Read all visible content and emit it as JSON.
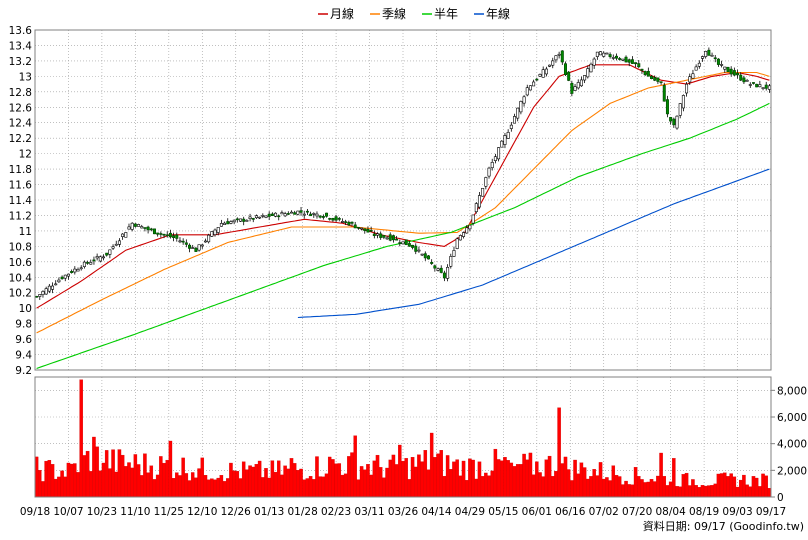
{
  "chart_data": {
    "type": "candlestick",
    "legend": [
      {
        "name": "月線",
        "color": "#cc0000"
      },
      {
        "name": "季線",
        "color": "#ff8000"
      },
      {
        "name": "半年",
        "color": "#00cc00"
      },
      {
        "name": "年線",
        "color": "#0050cc"
      }
    ],
    "price_axis": {
      "ylim": [
        9.2,
        13.6
      ],
      "ticks": [
        "13.6",
        "13.4",
        "13.2",
        "13",
        "12.8",
        "12.6",
        "12.4",
        "12.2",
        "12",
        "11.8",
        "11.6",
        "11.4",
        "11.2",
        "11",
        "10.8",
        "10.6",
        "10.4",
        "10.2",
        "10",
        "9.8",
        "9.6",
        "9.4",
        "9.2"
      ]
    },
    "volume_axis": {
      "ylim": [
        0,
        9000
      ],
      "ticks": [
        "8,000",
        "6,000",
        "4,000",
        "2,000",
        "0"
      ]
    },
    "x_ticks": [
      "09/18",
      "10/07",
      "10/23",
      "11/10",
      "11/25",
      "12/10",
      "12/26",
      "01/13",
      "01/28",
      "02/23",
      "03/11",
      "03/26",
      "04/14",
      "04/29",
      "05/15",
      "06/01",
      "06/16",
      "07/02",
      "07/20",
      "08/04",
      "08/19",
      "09/03",
      "09/17"
    ],
    "source_label": "資料日期: 09/17  (Goodinfo.tw)",
    "anchors": {
      "close": [
        [
          0,
          10.15
        ],
        [
          8,
          10.4
        ],
        [
          14,
          10.55
        ],
        [
          22,
          10.7
        ],
        [
          30,
          11.1
        ],
        [
          36,
          11.0
        ],
        [
          44,
          10.9
        ],
        [
          50,
          10.75
        ],
        [
          58,
          11.1
        ],
        [
          66,
          11.15
        ],
        [
          74,
          11.2
        ],
        [
          82,
          11.25
        ],
        [
          90,
          11.2
        ],
        [
          98,
          11.1
        ],
        [
          106,
          10.95
        ],
        [
          112,
          10.9
        ],
        [
          118,
          10.8
        ],
        [
          122,
          10.65
        ],
        [
          128,
          10.4
        ],
        [
          132,
          10.9
        ],
        [
          136,
          11.1
        ],
        [
          142,
          11.8
        ],
        [
          148,
          12.3
        ],
        [
          154,
          12.85
        ],
        [
          160,
          13.1
        ],
        [
          164,
          13.3
        ],
        [
          168,
          12.8
        ],
        [
          172,
          13.0
        ],
        [
          176,
          13.3
        ],
        [
          182,
          13.25
        ],
        [
          188,
          13.15
        ],
        [
          192,
          13.0
        ],
        [
          196,
          12.9
        ],
        [
          198,
          12.5
        ],
        [
          200,
          12.35
        ],
        [
          204,
          12.9
        ],
        [
          210,
          13.35
        ],
        [
          214,
          13.15
        ],
        [
          218,
          13.05
        ],
        [
          224,
          12.9
        ],
        [
          230,
          12.85
        ]
      ],
      "month": [
        [
          0,
          10.0
        ],
        [
          14,
          10.35
        ],
        [
          28,
          10.75
        ],
        [
          42,
          10.95
        ],
        [
          56,
          10.95
        ],
        [
          70,
          11.05
        ],
        [
          84,
          11.15
        ],
        [
          96,
          11.1
        ],
        [
          108,
          10.95
        ],
        [
          120,
          10.85
        ],
        [
          128,
          10.8
        ],
        [
          134,
          10.95
        ],
        [
          140,
          11.4
        ],
        [
          148,
          12.0
        ],
        [
          156,
          12.6
        ],
        [
          164,
          13.0
        ],
        [
          174,
          13.15
        ],
        [
          186,
          13.15
        ],
        [
          196,
          12.95
        ],
        [
          204,
          12.9
        ],
        [
          212,
          13.0
        ],
        [
          220,
          13.05
        ],
        [
          226,
          13.0
        ],
        [
          230,
          12.95
        ]
      ],
      "season": [
        [
          0,
          9.68
        ],
        [
          20,
          10.1
        ],
        [
          40,
          10.5
        ],
        [
          60,
          10.85
        ],
        [
          80,
          11.05
        ],
        [
          100,
          11.05
        ],
        [
          120,
          10.97
        ],
        [
          132,
          10.98
        ],
        [
          144,
          11.3
        ],
        [
          156,
          11.8
        ],
        [
          168,
          12.3
        ],
        [
          180,
          12.65
        ],
        [
          192,
          12.85
        ],
        [
          204,
          12.95
        ],
        [
          216,
          13.05
        ],
        [
          226,
          13.05
        ],
        [
          230,
          13.0
        ]
      ],
      "half": [
        [
          0,
          9.22
        ],
        [
          30,
          9.65
        ],
        [
          60,
          10.1
        ],
        [
          90,
          10.55
        ],
        [
          110,
          10.8
        ],
        [
          130,
          10.98
        ],
        [
          150,
          11.3
        ],
        [
          170,
          11.7
        ],
        [
          190,
          12.0
        ],
        [
          205,
          12.2
        ],
        [
          220,
          12.45
        ],
        [
          230,
          12.65
        ]
      ],
      "year": [
        [
          82,
          9.88
        ],
        [
          100,
          9.92
        ],
        [
          120,
          10.05
        ],
        [
          140,
          10.3
        ],
        [
          160,
          10.65
        ],
        [
          180,
          11.0
        ],
        [
          200,
          11.35
        ],
        [
          220,
          11.65
        ],
        [
          230,
          11.8
        ]
      ],
      "volume": [
        [
          0,
          2100
        ],
        [
          10,
          1900
        ],
        [
          14,
          2600
        ],
        [
          18,
          3100
        ],
        [
          24,
          2600
        ],
        [
          34,
          2400
        ],
        [
          44,
          2300
        ],
        [
          54,
          2000
        ],
        [
          64,
          1900
        ],
        [
          74,
          1900
        ],
        [
          84,
          2100
        ],
        [
          94,
          2500
        ],
        [
          104,
          2300
        ],
        [
          114,
          2200
        ],
        [
          124,
          2700
        ],
        [
          134,
          2200
        ],
        [
          144,
          2500
        ],
        [
          154,
          2300
        ],
        [
          162,
          2400
        ],
        [
          170,
          2100
        ],
        [
          180,
          1800
        ],
        [
          190,
          1500
        ],
        [
          200,
          1300
        ],
        [
          210,
          1200
        ],
        [
          220,
          1300
        ],
        [
          230,
          1200
        ]
      ],
      "volume_spikes": [
        [
          14,
          8800
        ],
        [
          18,
          4500
        ],
        [
          42,
          4200
        ],
        [
          80,
          2900
        ],
        [
          100,
          4600
        ],
        [
          114,
          3900
        ],
        [
          124,
          4800
        ],
        [
          134,
          2700
        ],
        [
          150,
          2300
        ],
        [
          164,
          6700
        ],
        [
          196,
          3300
        ],
        [
          200,
          2900
        ]
      ]
    }
  }
}
